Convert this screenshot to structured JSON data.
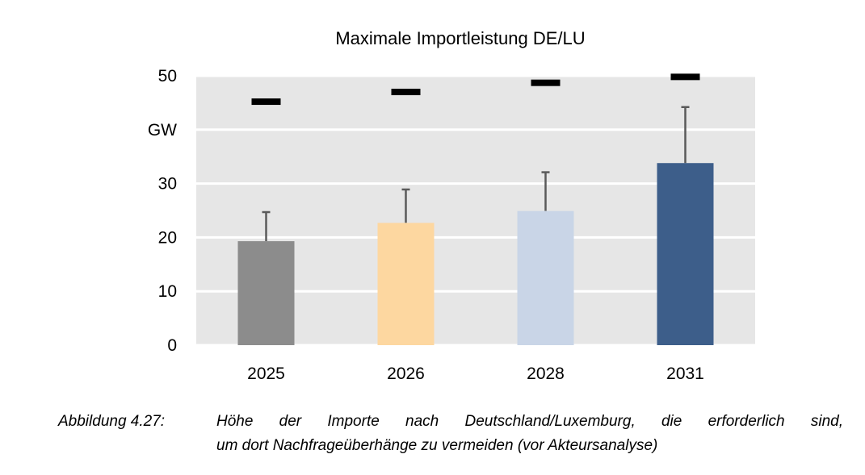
{
  "chart_data": {
    "type": "bar",
    "title": "Maximale Importleistung DE/LU",
    "ylabel": "GW",
    "categories": [
      "2025",
      "2026",
      "2028",
      "2031"
    ],
    "values": [
      19.3,
      22.7,
      24.9,
      33.8
    ],
    "error_upper": [
      24.7,
      28.9,
      32.1,
      44.2
    ],
    "max_markers": [
      45.2,
      47.0,
      48.7,
      49.8
    ],
    "bar_colors": [
      "#8c8c8c",
      "#fdd7a0",
      "#c9d5e7",
      "#3d5e8a"
    ],
    "ylim": [
      0,
      50
    ],
    "yticks": [
      {
        "value": 0,
        "label": "0"
      },
      {
        "value": 10,
        "label": "10"
      },
      {
        "value": 20,
        "label": "20"
      },
      {
        "value": 30,
        "label": "30"
      },
      {
        "value": 40,
        "label": "GW"
      },
      {
        "value": 50,
        "label": "50"
      }
    ],
    "grid": true,
    "plot_background": "#e6e6e6",
    "marker_color": "#000000",
    "error_color": "#5a5a5a"
  },
  "caption": {
    "label": "Abbildung 4.27:",
    "line1": "Höhe der Importe nach Deutschland/Luxemburg, die erforderlich sind,",
    "line2": "um dort Nachfrageüberhänge zu vermeiden (vor Akteursanalyse)"
  }
}
